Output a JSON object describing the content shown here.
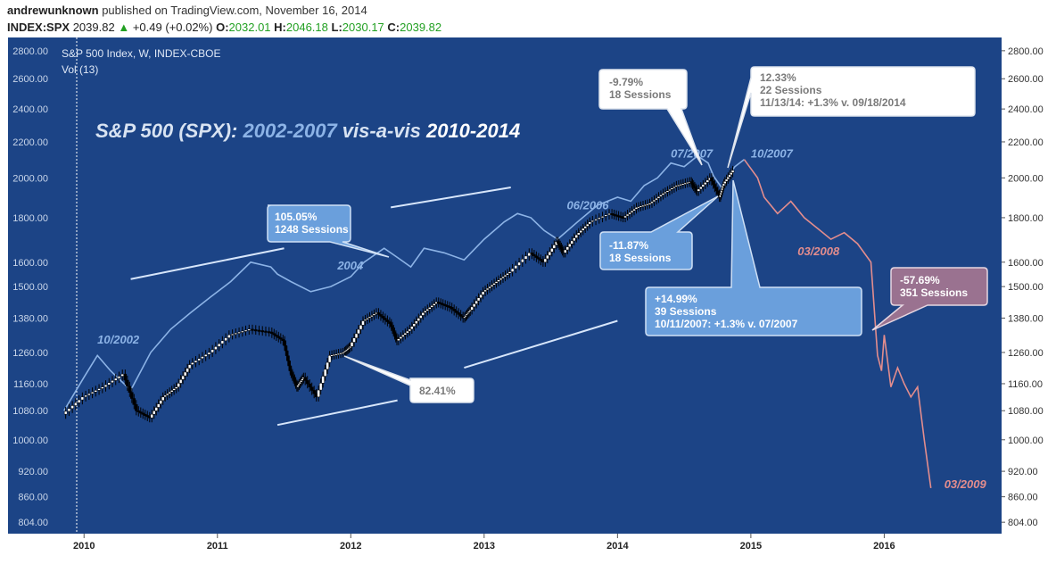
{
  "header": {
    "user": "andrewunknown",
    "published": "published on TradingView.com, November 16, 2014",
    "symbol": "INDEX:SPX",
    "price": "2039.82",
    "change": "+0.49 (+0.02%)",
    "open_label": "O:",
    "open": "2032.01",
    "high_label": "H:",
    "high": "2046.18",
    "low_label": "L:",
    "low": "2030.17",
    "close_label": "C:",
    "close": "2039.82"
  },
  "colors": {
    "background": "#1c4486",
    "history_line": "#8cb3e6",
    "projection_line": "#e38d8d",
    "candle_up": "#ffffff",
    "candle_down": "#000000",
    "trend_line": "#d7e6fb",
    "callout_white": "#ffffff",
    "callout_blue": "#6a9fdc",
    "callout_mauve": "#9a7290",
    "axis_panel": "#ffffff"
  },
  "chart_data": {
    "type": "line",
    "scale": "log",
    "title": "S&P 500 (SPX): 2002-2007 vis-a-vis  2010-2014",
    "title_parts": [
      "S&P 500 (SPX): ",
      "2002-2007",
      " vis-a-vis  ",
      "2010-2014"
    ],
    "instrument_label": "S&P 500 Index, W, INDEX-CBOE",
    "volume_label": "Vol (13)",
    "ylim": [
      780,
      2900
    ],
    "y_ticks": [
      804,
      860,
      920,
      1000,
      1080,
      1160,
      1260,
      1380,
      1500,
      1600,
      1800,
      2000,
      2200,
      2400,
      2600,
      2800
    ],
    "y_tick_labels": [
      "804.00",
      "860.00",
      "920.00",
      "1000.00",
      "1080.00",
      "1160.00",
      "1260.00",
      "1380.00",
      "1500.00",
      "1600.00",
      "1800.00",
      "2000.00",
      "2200.00",
      "2400.00",
      "2600.00",
      "2800.00"
    ],
    "xlim": [
      2009.85,
      2016.9
    ],
    "x_ticks": [
      2010,
      2011,
      2012,
      2013,
      2014,
      2015,
      2016
    ],
    "x_tick_labels": [
      "2010",
      "2011",
      "2012",
      "2013",
      "2014",
      "2015",
      "2016"
    ],
    "series": [
      {
        "name": "2010-2014",
        "kind": "candles",
        "x": [
          2009.85,
          2010.0,
          2010.15,
          2010.3,
          2010.4,
          2010.5,
          2010.6,
          2010.7,
          2010.8,
          2010.95,
          2011.1,
          2011.25,
          2011.4,
          2011.5,
          2011.55,
          2011.6,
          2011.65,
          2011.75,
          2011.85,
          2011.95,
          2012.0,
          2012.1,
          2012.2,
          2012.3,
          2012.35,
          2012.45,
          2012.55,
          2012.65,
          2012.75,
          2012.85,
          2012.9,
          2013.0,
          2013.1,
          2013.2,
          2013.35,
          2013.45,
          2013.55,
          2013.6,
          2013.7,
          2013.8,
          2013.95,
          2014.05,
          2014.15,
          2014.25,
          2014.35,
          2014.45,
          2014.55,
          2014.6,
          2014.7,
          2014.77,
          2014.8,
          2014.87
        ],
        "y": [
          1070,
          1120,
          1150,
          1190,
          1080,
          1060,
          1120,
          1150,
          1220,
          1260,
          1320,
          1340,
          1330,
          1300,
          1200,
          1150,
          1180,
          1120,
          1250,
          1260,
          1280,
          1370,
          1400,
          1360,
          1300,
          1340,
          1400,
          1440,
          1420,
          1380,
          1410,
          1480,
          1520,
          1560,
          1640,
          1600,
          1690,
          1640,
          1720,
          1780,
          1820,
          1800,
          1850,
          1870,
          1920,
          1960,
          1980,
          1930,
          2000,
          1900,
          1970,
          2040
        ]
      },
      {
        "name": "2002-2007",
        "kind": "line",
        "x": [
          2009.85,
          2010.0,
          2010.1,
          2010.2,
          2010.35,
          2010.5,
          2010.65,
          2010.8,
          2010.95,
          2011.1,
          2011.25,
          2011.4,
          2011.45,
          2011.55,
          2011.7,
          2011.85,
          2012.0,
          2012.1,
          2012.25,
          2012.35,
          2012.45,
          2012.55,
          2012.7,
          2012.85,
          2013.0,
          2013.15,
          2013.25,
          2013.35,
          2013.45,
          2013.55,
          2013.7,
          2013.85,
          2014.0,
          2014.1,
          2014.2,
          2014.3,
          2014.4,
          2014.5,
          2014.6,
          2014.68,
          2014.72,
          2014.78,
          2014.82,
          2014.85,
          2014.88,
          2014.95
        ],
        "y": [
          1080,
          1180,
          1250,
          1200,
          1140,
          1260,
          1340,
          1400,
          1460,
          1520,
          1600,
          1580,
          1550,
          1520,
          1480,
          1500,
          1540,
          1600,
          1660,
          1620,
          1580,
          1660,
          1640,
          1610,
          1700,
          1780,
          1820,
          1800,
          1740,
          1700,
          1780,
          1860,
          1900,
          1880,
          1960,
          2000,
          2080,
          2060,
          2120,
          2080,
          2010,
          1950,
          1990,
          2030,
          2060,
          2100
        ]
      },
      {
        "name": "projection",
        "kind": "line",
        "x": [
          2014.95,
          2015.05,
          2015.1,
          2015.2,
          2015.3,
          2015.4,
          2015.5,
          2015.6,
          2015.7,
          2015.8,
          2015.9,
          2015.95,
          2015.98,
          2016.0,
          2016.05,
          2016.1,
          2016.15,
          2016.2,
          2016.25,
          2016.3,
          2016.35
        ],
        "y": [
          2100,
          2000,
          1900,
          1820,
          1880,
          1800,
          1750,
          1700,
          1730,
          1680,
          1600,
          1250,
          1200,
          1320,
          1150,
          1210,
          1160,
          1120,
          1150,
          1000,
          880
        ]
      }
    ],
    "annotations": [
      {
        "text": "10/2002",
        "x": 2010.1,
        "y": 1290,
        "color": "#8cb3e6"
      },
      {
        "text": "2004",
        "x": 2011.9,
        "y": 1570,
        "color": "#8cb3e6"
      },
      {
        "text": "06/2006",
        "x": 2013.62,
        "y": 1840,
        "color": "#8cb3e6"
      },
      {
        "text": "07/2007",
        "x": 2014.4,
        "y": 2110,
        "color": "#8cb3e6"
      },
      {
        "text": "10/2007",
        "x": 2015.0,
        "y": 2110,
        "color": "#8cb3e6"
      },
      {
        "text": "03/2008",
        "x": 2015.35,
        "y": 1630,
        "color": "#e38d8d"
      },
      {
        "text": "03/2009",
        "x": 2016.45,
        "y": 880,
        "color": "#e38d8d"
      }
    ],
    "callouts": [
      {
        "lines": [
          "105.05%",
          "1248 Sessions"
        ],
        "style": "blue"
      },
      {
        "lines": [
          "82.41%"
        ],
        "style": "white"
      },
      {
        "lines": [
          "-9.79%",
          "18 Sessions"
        ],
        "style": "white"
      },
      {
        "lines": [
          "12.33%",
          "22 Sessions",
          "11/13/14: +1.3% v. 09/18/2014"
        ],
        "style": "white"
      },
      {
        "lines": [
          "-11.87%",
          "18 Sessions"
        ],
        "style": "blue"
      },
      {
        "lines": [
          "+14.99%",
          "39 Sessions",
          "10/11/2007: +1.3% v. 07/2007"
        ],
        "style": "blue"
      },
      {
        "lines": [
          "-57.69%",
          "351 Sessions"
        ],
        "style": "mauve"
      }
    ],
    "trend_lines": [
      {
        "from": [
          2010.35,
          1530
        ],
        "to": [
          2011.5,
          1660
        ]
      },
      {
        "from": [
          2012.3,
          1850
        ],
        "to": [
          2013.2,
          1950
        ]
      },
      {
        "from": [
          2011.45,
          1040
        ],
        "to": [
          2012.35,
          1110
        ]
      },
      {
        "from": [
          2012.85,
          1210
        ],
        "to": [
          2014.0,
          1370
        ]
      }
    ],
    "grid": false
  }
}
